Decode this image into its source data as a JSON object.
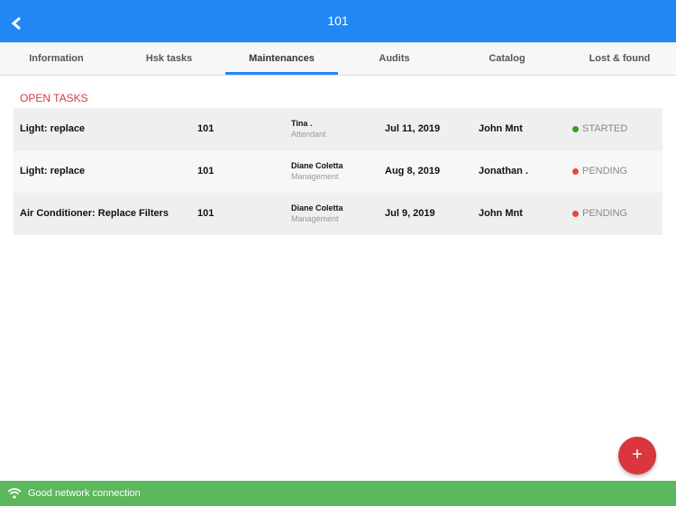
{
  "header": {
    "title": "101"
  },
  "tabs": {
    "items": [
      "Information",
      "Hsk tasks",
      "Maintenances",
      "Audits",
      "Catalog",
      "Lost & found"
    ],
    "active": 2
  },
  "section": {
    "title": "OPEN TASKS"
  },
  "tasks": [
    {
      "name": "Light: replace",
      "room": "101",
      "assignee": "Tina .",
      "role": "Attendant",
      "date": "Jul 11, 2019",
      "owner": "John Mnt",
      "status": "STARTED",
      "status_color": "#3a9a2a"
    },
    {
      "name": "Light: replace",
      "room": "101",
      "assignee": "Diane Coletta",
      "role": "Management",
      "date": "Aug 8, 2019",
      "owner": "Jonathan .",
      "status": "PENDING",
      "status_color": "#e04848"
    },
    {
      "name": "Air Conditioner: Replace Filters",
      "room": "101",
      "assignee": "Diane Coletta",
      "role": "Management",
      "date": "Jul 9, 2019",
      "owner": "John Mnt",
      "status": "PENDING",
      "status_color": "#e04848"
    }
  ],
  "fab": {
    "label": "+"
  },
  "footer": {
    "text": "Good network connection"
  }
}
